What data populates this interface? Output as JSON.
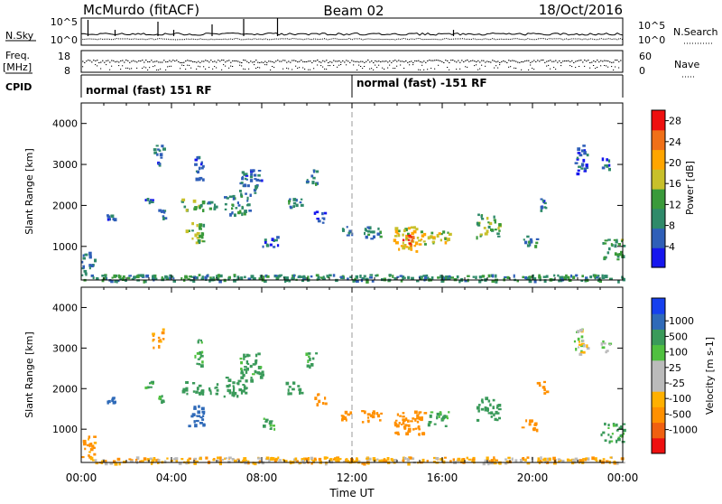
{
  "header": {
    "station": "McMurdo (fitACF)",
    "beam": "Beam 02",
    "date": "18/Oct/2016"
  },
  "noise_panel": {
    "left_label": "N.Sky",
    "right_label": "N.Search",
    "left_ticks": [
      "10^5",
      "10^0"
    ],
    "right_ticks": [
      "10^5",
      "10^0"
    ]
  },
  "freq_panel": {
    "label_top": "Freq.",
    "label_unit": "[MHz]",
    "left_ticks": [
      "18",
      "8"
    ],
    "right_ticks": [
      "60",
      "0"
    ],
    "right_label": "Nave"
  },
  "cpid_panel": {
    "label": "CPID",
    "segments": [
      {
        "start_hour": 0,
        "end_hour": 12,
        "text": "normal (fast) 151 RF"
      },
      {
        "start_hour": 12,
        "end_hour": 24,
        "text": "normal (fast) -151 RF"
      }
    ]
  },
  "colors": {
    "power_scale": [
      "#1616ee",
      "#2f5fb8",
      "#2f8a6a",
      "#3a9a3a",
      "#c8c02a",
      "#ffa500",
      "#f07018",
      "#ee1010"
    ],
    "velocity_scale": [
      "#ee1010",
      "#f06010",
      "#ff9000",
      "#ffb000",
      "#bbbbbb",
      "#bbbbbb",
      "#50c040",
      "#3a9a5a",
      "#2f6ab8",
      "#1640ee"
    ]
  },
  "chart_data": [
    {
      "type": "heatmap",
      "name": "power",
      "ylabel": "Slant Range [km]",
      "xlabel": "",
      "xlim": [
        0,
        24
      ],
      "ylim": [
        180,
        4500
      ],
      "x_ticks": [
        "00:00",
        "04:00",
        "08:00",
        "12:00",
        "16:00",
        "20:00",
        "00:00"
      ],
      "y_ticks": [
        1000,
        2000,
        3000,
        4000
      ],
      "colorbar": {
        "label": "Power [dB]",
        "ticks": [
          "4",
          "8",
          "12",
          "16",
          "20",
          "24",
          "28"
        ],
        "range": [
          0,
          30
        ]
      },
      "regions": [
        {
          "t0": 0.0,
          "t1": 0.6,
          "r0": 300,
          "r1": 900,
          "value": 8
        },
        {
          "t0": 0.0,
          "t1": 24.0,
          "r0": 180,
          "r1": 330,
          "value": 10
        },
        {
          "t0": 1.1,
          "t1": 1.5,
          "r0": 1680,
          "r1": 1800,
          "value": 6
        },
        {
          "t0": 2.8,
          "t1": 3.2,
          "r0": 2050,
          "r1": 2200,
          "value": 6
        },
        {
          "t0": 3.1,
          "t1": 3.6,
          "r0": 3000,
          "r1": 3500,
          "value": 6
        },
        {
          "t0": 3.4,
          "t1": 3.7,
          "r0": 1700,
          "r1": 1950,
          "value": 7
        },
        {
          "t0": 4.4,
          "t1": 5.4,
          "r0": 1900,
          "r1": 2200,
          "value": 12
        },
        {
          "t0": 4.6,
          "t1": 5.4,
          "r0": 1100,
          "r1": 1600,
          "value": 14
        },
        {
          "t0": 5.0,
          "t1": 5.4,
          "r0": 2600,
          "r1": 3300,
          "value": 6
        },
        {
          "t0": 5.5,
          "t1": 6.0,
          "r0": 1900,
          "r1": 2150,
          "value": 10
        },
        {
          "t0": 6.3,
          "t1": 7.5,
          "r0": 1800,
          "r1": 2300,
          "value": 9
        },
        {
          "t0": 7.0,
          "t1": 8.0,
          "r0": 2300,
          "r1": 2900,
          "value": 7
        },
        {
          "t0": 8.0,
          "t1": 8.7,
          "r0": 1000,
          "r1": 1300,
          "value": 6
        },
        {
          "t0": 9.0,
          "t1": 9.8,
          "r0": 1900,
          "r1": 2200,
          "value": 8
        },
        {
          "t0": 9.9,
          "t1": 10.4,
          "r0": 2500,
          "r1": 2900,
          "value": 8
        },
        {
          "t0": 10.3,
          "t1": 10.8,
          "r0": 1600,
          "r1": 1900,
          "value": 6
        },
        {
          "t0": 11.5,
          "t1": 12.0,
          "r0": 1250,
          "r1": 1500,
          "value": 8
        },
        {
          "t0": 12.3,
          "t1": 13.3,
          "r0": 1200,
          "r1": 1500,
          "value": 8
        },
        {
          "t0": 13.8,
          "t1": 15.2,
          "r0": 900,
          "r1": 1500,
          "value": 18
        },
        {
          "t0": 14.2,
          "t1": 14.8,
          "r0": 1000,
          "r1": 1300,
          "value": 27
        },
        {
          "t0": 15.3,
          "t1": 16.3,
          "r0": 1100,
          "r1": 1450,
          "value": 16
        },
        {
          "t0": 17.5,
          "t1": 18.5,
          "r0": 1250,
          "r1": 1800,
          "value": 13
        },
        {
          "t0": 19.5,
          "t1": 20.2,
          "r0": 1000,
          "r1": 1300,
          "value": 9
        },
        {
          "t0": 20.1,
          "t1": 20.6,
          "r0": 1900,
          "r1": 2200,
          "value": 7
        },
        {
          "t0": 21.8,
          "t1": 22.4,
          "r0": 2800,
          "r1": 3500,
          "value": 6
        },
        {
          "t0": 23.0,
          "t1": 23.4,
          "r0": 2900,
          "r1": 3200,
          "value": 6
        },
        {
          "t0": 23.0,
          "t1": 24.0,
          "r0": 700,
          "r1": 1200,
          "value": 12
        }
      ]
    },
    {
      "type": "heatmap",
      "name": "velocity",
      "ylabel": "Slant Range [km]",
      "xlabel": "Time UT",
      "xlim": [
        0,
        24
      ],
      "ylim": [
        180,
        4500
      ],
      "x_ticks": [
        "00:00",
        "04:00",
        "08:00",
        "12:00",
        "16:00",
        "20:00",
        "00:00"
      ],
      "y_ticks": [
        1000,
        2000,
        3000,
        4000
      ],
      "colorbar": {
        "label": "Velocity [m s-1]",
        "ticks": [
          "1000",
          "500",
          "100",
          "25",
          "-25",
          "-100",
          "-500",
          "-1000"
        ]
      },
      "regions": [
        {
          "t0": 0.0,
          "t1": 0.6,
          "r0": 300,
          "r1": 900,
          "value": -150
        },
        {
          "t0": 0.0,
          "t1": 24.0,
          "r0": 180,
          "r1": 330,
          "value": -60
        },
        {
          "t0": 1.1,
          "t1": 1.5,
          "r0": 1680,
          "r1": 1800,
          "value": 600
        },
        {
          "t0": 2.8,
          "t1": 3.2,
          "r0": 2050,
          "r1": 2200,
          "value": 150
        },
        {
          "t0": 3.1,
          "t1": 3.6,
          "r0": 3000,
          "r1": 3500,
          "value": -150
        },
        {
          "t0": 3.4,
          "t1": 3.7,
          "r0": 1700,
          "r1": 1950,
          "value": 150
        },
        {
          "t0": 4.4,
          "t1": 5.4,
          "r0": 1900,
          "r1": 2200,
          "value": 180
        },
        {
          "t0": 4.6,
          "t1": 5.4,
          "r0": 1100,
          "r1": 1600,
          "value": 700
        },
        {
          "t0": 5.0,
          "t1": 5.4,
          "r0": 2600,
          "r1": 3300,
          "value": 120
        },
        {
          "t0": 5.5,
          "t1": 6.0,
          "r0": 1900,
          "r1": 2150,
          "value": 150
        },
        {
          "t0": 6.3,
          "t1": 7.5,
          "r0": 1800,
          "r1": 2300,
          "value": 200
        },
        {
          "t0": 7.0,
          "t1": 8.0,
          "r0": 2300,
          "r1": 2900,
          "value": 150
        },
        {
          "t0": 8.0,
          "t1": 8.7,
          "r0": 1000,
          "r1": 1300,
          "value": 120
        },
        {
          "t0": 9.0,
          "t1": 9.8,
          "r0": 1900,
          "r1": 2200,
          "value": 200
        },
        {
          "t0": 9.9,
          "t1": 10.4,
          "r0": 2500,
          "r1": 2900,
          "value": 150
        },
        {
          "t0": 10.3,
          "t1": 10.8,
          "r0": 1600,
          "r1": 1900,
          "value": -200
        },
        {
          "t0": 11.5,
          "t1": 12.0,
          "r0": 1250,
          "r1": 1500,
          "value": -200
        },
        {
          "t0": 12.3,
          "t1": 13.3,
          "r0": 1200,
          "r1": 1500,
          "value": -250
        },
        {
          "t0": 13.8,
          "t1": 15.2,
          "r0": 900,
          "r1": 1500,
          "value": -300
        },
        {
          "t0": 14.2,
          "t1": 14.8,
          "r0": 1000,
          "r1": 1300,
          "value": -400
        },
        {
          "t0": 15.3,
          "t1": 16.3,
          "r0": 1100,
          "r1": 1450,
          "value": 150
        },
        {
          "t0": 17.5,
          "t1": 18.5,
          "r0": 1250,
          "r1": 1800,
          "value": 200
        },
        {
          "t0": 19.5,
          "t1": 20.2,
          "r0": 1000,
          "r1": 1300,
          "value": -300
        },
        {
          "t0": 20.1,
          "t1": 20.6,
          "r0": 1900,
          "r1": 2200,
          "value": -250
        },
        {
          "t0": 21.8,
          "t1": 22.4,
          "r0": 2800,
          "r1": 3500,
          "value": 10
        },
        {
          "t0": 23.0,
          "t1": 23.4,
          "r0": 2900,
          "r1": 3200,
          "value": 10
        },
        {
          "t0": 23.0,
          "t1": 24.0,
          "r0": 700,
          "r1": 1200,
          "value": 130
        }
      ]
    }
  ]
}
